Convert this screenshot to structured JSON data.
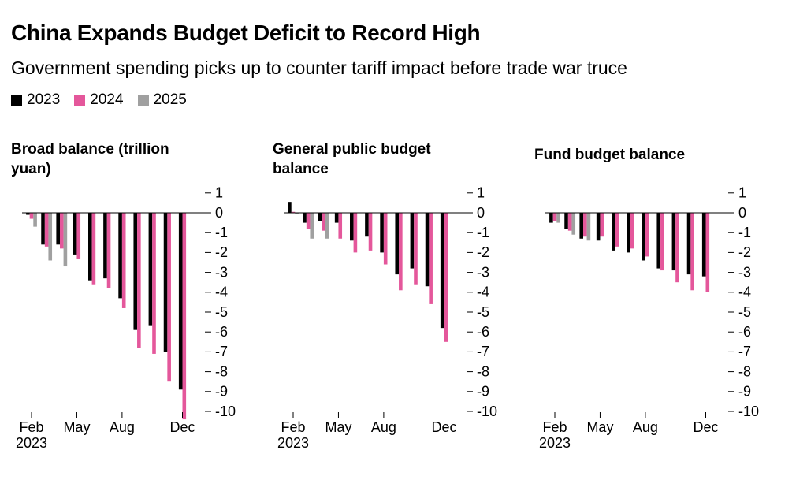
{
  "title": "China Expands Budget Deficit to Record High",
  "subtitle": "Government spending picks up to counter tariff impact before trade war truce",
  "chart_data": [
    {
      "type": "bar",
      "title": "Broad balance (trillion yuan)",
      "categories": [
        "Feb 2023",
        null,
        null,
        "May",
        null,
        null,
        "Aug",
        null,
        null,
        null,
        "Dec"
      ],
      "series": [
        {
          "name": "2023",
          "color": "#000000",
          "values": [
            -0.1,
            -1.6,
            -1.6,
            -2.1,
            -3.4,
            -3.3,
            -4.3,
            -5.9,
            -5.7,
            -7.0,
            -8.9
          ]
        },
        {
          "name": "2024",
          "color": "#e4579b",
          "values": [
            -0.3,
            -1.7,
            -1.8,
            -2.3,
            -3.6,
            -3.8,
            -4.8,
            -6.8,
            -7.1,
            -8.5,
            -10.4
          ]
        },
        {
          "name": "2025",
          "color": "#a0a0a0",
          "values": [
            -0.7,
            -2.4,
            -2.7,
            null,
            null,
            null,
            null,
            null,
            null,
            null,
            null
          ]
        }
      ],
      "ylim": [
        -10.5,
        1.2
      ],
      "yticks": [
        1,
        0,
        -1,
        -2,
        -3,
        -4,
        -5,
        -6,
        -7,
        -8,
        -9,
        -10
      ]
    },
    {
      "type": "bar",
      "title": "General public budget balance",
      "categories": [
        "Feb 2023",
        null,
        null,
        "May",
        null,
        null,
        "Aug",
        null,
        null,
        null,
        "Dec"
      ],
      "series": [
        {
          "name": "2023",
          "color": "#000000",
          "values": [
            0.55,
            -0.5,
            -0.4,
            -0.5,
            -1.4,
            -1.2,
            -2.0,
            -3.1,
            -2.8,
            -3.7,
            -5.8
          ]
        },
        {
          "name": "2024",
          "color": "#e4579b",
          "values": [
            0.05,
            -0.8,
            -0.9,
            -1.3,
            -2.0,
            -1.9,
            -2.6,
            -3.9,
            -3.6,
            -4.6,
            -6.5
          ]
        },
        {
          "name": "2025",
          "color": "#a0a0a0",
          "values": [
            -0.05,
            -1.3,
            -1.3,
            null,
            null,
            null,
            null,
            null,
            null,
            null,
            null
          ]
        }
      ],
      "ylim": [
        -10.5,
        1.2
      ],
      "yticks": [
        1,
        0,
        -1,
        -2,
        -3,
        -4,
        -5,
        -6,
        -7,
        -8,
        -9,
        -10
      ]
    },
    {
      "type": "bar",
      "title": "Fund budget balance",
      "categories": [
        "Feb 2023",
        null,
        null,
        "May",
        null,
        null,
        "Aug",
        null,
        null,
        null,
        "Dec"
      ],
      "series": [
        {
          "name": "2023",
          "color": "#000000",
          "values": [
            -0.5,
            -0.8,
            -1.3,
            -1.4,
            -1.9,
            -2.0,
            -2.4,
            -2.8,
            -2.9,
            -3.1,
            -3.2
          ]
        },
        {
          "name": "2024",
          "color": "#e4579b",
          "values": [
            -0.4,
            -0.9,
            -1.2,
            -1.2,
            -1.7,
            -1.8,
            -2.2,
            -2.9,
            -3.5,
            -3.9,
            -4.0
          ]
        },
        {
          "name": "2025",
          "color": "#a0a0a0",
          "values": [
            -0.5,
            -1.1,
            -1.4,
            null,
            null,
            null,
            null,
            null,
            null,
            null,
            null
          ]
        }
      ],
      "ylim": [
        -10.5,
        1.2
      ],
      "yticks": [
        1,
        0,
        -1,
        -2,
        -3,
        -4,
        -5,
        -6,
        -7,
        -8,
        -9,
        -10
      ]
    }
  ]
}
